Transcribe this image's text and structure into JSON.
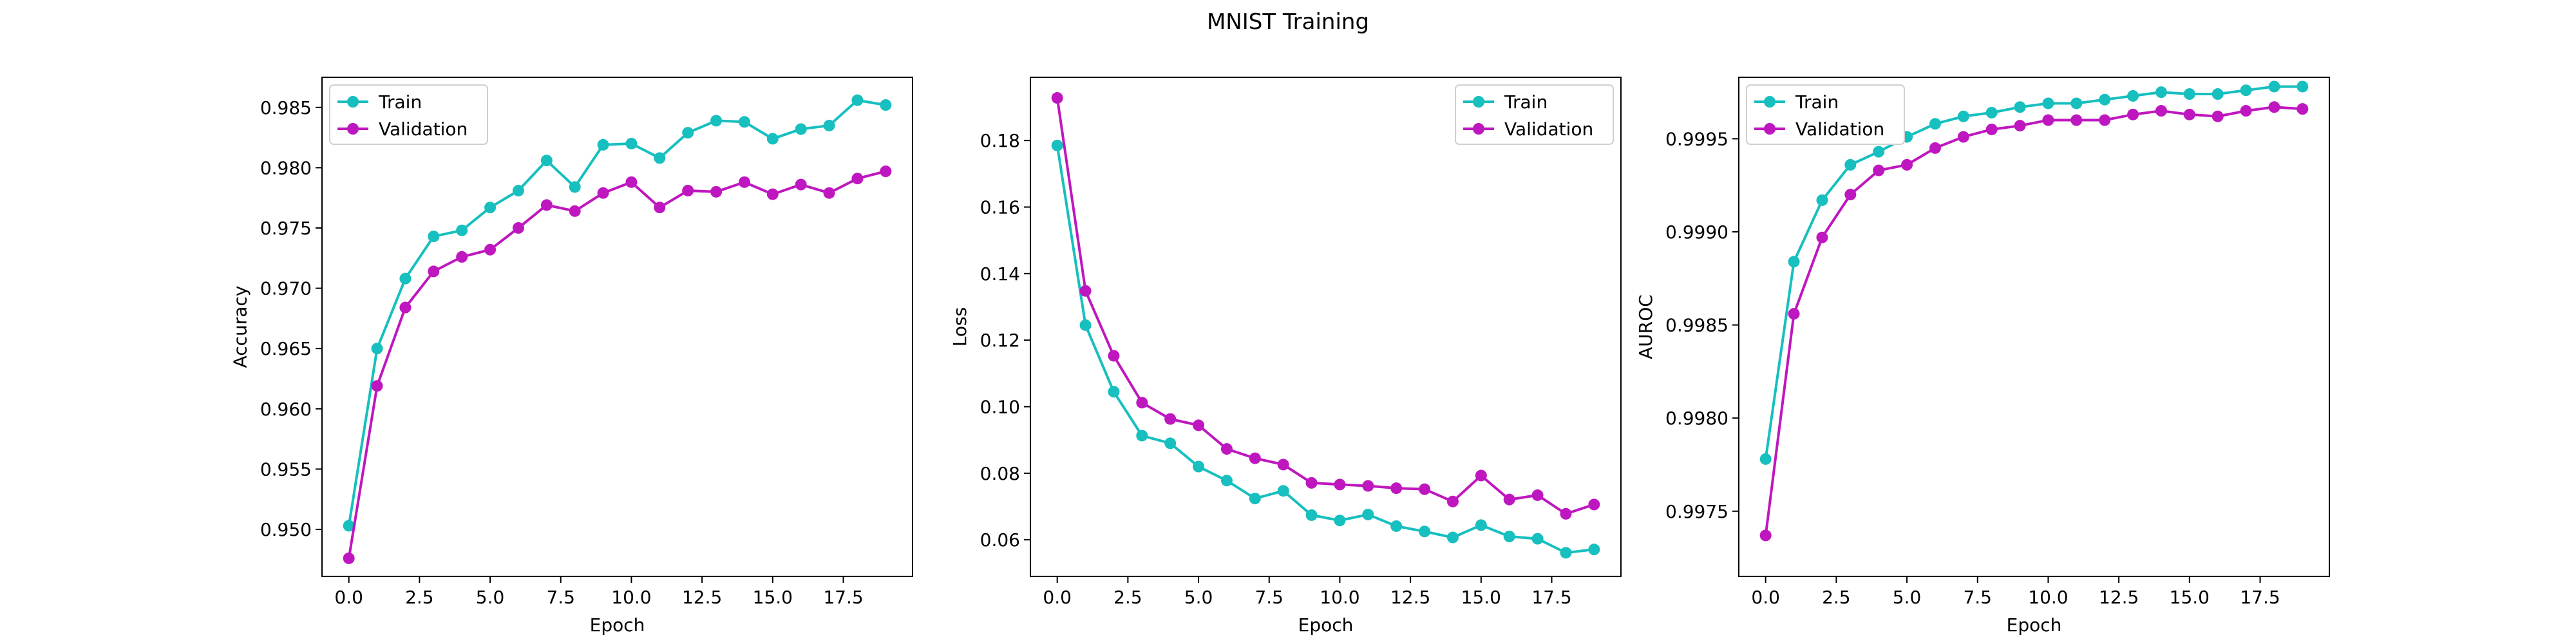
{
  "figure": {
    "title": "MNIST Training"
  },
  "colors": {
    "train": "#17bfbf",
    "validation": "#bf17bf"
  },
  "chart_data": [
    {
      "type": "line",
      "title": "",
      "xlabel": "Epoch",
      "ylabel": "Accuracy",
      "xlim": [
        -0.95,
        19.95
      ],
      "ylim": [
        0.9461,
        0.9875
      ],
      "xticks": [
        0.0,
        2.5,
        5.0,
        7.5,
        10.0,
        12.5,
        15.0,
        17.5
      ],
      "xtick_labels": [
        "0.0",
        "2.5",
        "5.0",
        "7.5",
        "10.0",
        "12.5",
        "15.0",
        "17.5"
      ],
      "yticks": [
        0.95,
        0.955,
        0.96,
        0.965,
        0.97,
        0.975,
        0.98,
        0.985
      ],
      "ytick_labels": [
        "0.950",
        "0.955",
        "0.960",
        "0.965",
        "0.970",
        "0.975",
        "0.980",
        "0.985"
      ],
      "legend": "top-left",
      "grid": false,
      "x": [
        0,
        1,
        2,
        3,
        4,
        5,
        6,
        7,
        8,
        9,
        10,
        11,
        12,
        13,
        14,
        15,
        16,
        17,
        18,
        19
      ],
      "series": [
        {
          "name": "Train",
          "color_key": "train",
          "values": [
            0.9503,
            0.965,
            0.9708,
            0.9743,
            0.9748,
            0.9767,
            0.9781,
            0.9806,
            0.9784,
            0.9819,
            0.982,
            0.9808,
            0.9829,
            0.9839,
            0.9838,
            0.9824,
            0.9832,
            0.9835,
            0.9856,
            0.9852
          ]
        },
        {
          "name": "Validation",
          "color_key": "validation",
          "values": [
            0.9476,
            0.9619,
            0.9684,
            0.9714,
            0.9726,
            0.9732,
            0.975,
            0.9769,
            0.9764,
            0.9779,
            0.9788,
            0.9767,
            0.9781,
            0.978,
            0.9788,
            0.9778,
            0.9786,
            0.9779,
            0.9791,
            0.9797
          ]
        }
      ]
    },
    {
      "type": "line",
      "title": "",
      "xlabel": "Epoch",
      "ylabel": "Loss",
      "xlim": [
        -0.95,
        19.95
      ],
      "ylim": [
        0.049,
        0.199
      ],
      "xticks": [
        0.0,
        2.5,
        5.0,
        7.5,
        10.0,
        12.5,
        15.0,
        17.5
      ],
      "xtick_labels": [
        "0.0",
        "2.5",
        "5.0",
        "7.5",
        "10.0",
        "12.5",
        "15.0",
        "17.5"
      ],
      "yticks": [
        0.06,
        0.08,
        0.1,
        0.12,
        0.14,
        0.16,
        0.18
      ],
      "ytick_labels": [
        "0.06",
        "0.08",
        "0.10",
        "0.12",
        "0.14",
        "0.16",
        "0.18"
      ],
      "legend": "top-right",
      "grid": false,
      "x": [
        0,
        1,
        2,
        3,
        4,
        5,
        6,
        7,
        8,
        9,
        10,
        11,
        12,
        13,
        14,
        15,
        16,
        17,
        18,
        19
      ],
      "series": [
        {
          "name": "Train",
          "color_key": "train",
          "values": [
            0.1785,
            0.1245,
            0.1045,
            0.0913,
            0.089,
            0.082,
            0.0778,
            0.0724,
            0.0747,
            0.0674,
            0.0658,
            0.0676,
            0.0641,
            0.0625,
            0.0607,
            0.0644,
            0.061,
            0.0603,
            0.0561,
            0.0571
          ]
        },
        {
          "name": "Validation",
          "color_key": "validation",
          "values": [
            0.1928,
            0.1348,
            0.1153,
            0.1012,
            0.0963,
            0.0944,
            0.0873,
            0.0845,
            0.0826,
            0.0771,
            0.0766,
            0.0762,
            0.0755,
            0.0752,
            0.0715,
            0.0793,
            0.0721,
            0.0734,
            0.0678,
            0.0706
          ]
        }
      ]
    },
    {
      "type": "line",
      "title": "",
      "xlabel": "Epoch",
      "ylabel": "AUROC",
      "xlim": [
        -0.95,
        19.95
      ],
      "ylim": [
        0.99715,
        0.99983
      ],
      "xticks": [
        0.0,
        2.5,
        5.0,
        7.5,
        10.0,
        12.5,
        15.0,
        17.5
      ],
      "xtick_labels": [
        "0.0",
        "2.5",
        "5.0",
        "7.5",
        "10.0",
        "12.5",
        "15.0",
        "17.5"
      ],
      "yticks": [
        0.9975,
        0.998,
        0.9985,
        0.999,
        0.9995
      ],
      "ytick_labels": [
        "0.9975",
        "0.9980",
        "0.9985",
        "0.9990",
        "0.9995"
      ],
      "legend": "top-left",
      "grid": false,
      "x": [
        0,
        1,
        2,
        3,
        4,
        5,
        6,
        7,
        8,
        9,
        10,
        11,
        12,
        13,
        14,
        15,
        16,
        17,
        18,
        19
      ],
      "series": [
        {
          "name": "Train",
          "color_key": "train",
          "values": [
            0.99778,
            0.99884,
            0.99917,
            0.99936,
            0.99943,
            0.99951,
            0.99958,
            0.99962,
            0.99964,
            0.99967,
            0.99969,
            0.99969,
            0.99971,
            0.99973,
            0.99975,
            0.99974,
            0.99974,
            0.99976,
            0.99978,
            0.99978
          ]
        },
        {
          "name": "Validation",
          "color_key": "validation",
          "values": [
            0.99737,
            0.99856,
            0.99897,
            0.9992,
            0.99933,
            0.99936,
            0.99945,
            0.99951,
            0.99955,
            0.99957,
            0.9996,
            0.9996,
            0.9996,
            0.99963,
            0.99965,
            0.99963,
            0.99962,
            0.99965,
            0.99967,
            0.99966
          ]
        }
      ]
    }
  ]
}
